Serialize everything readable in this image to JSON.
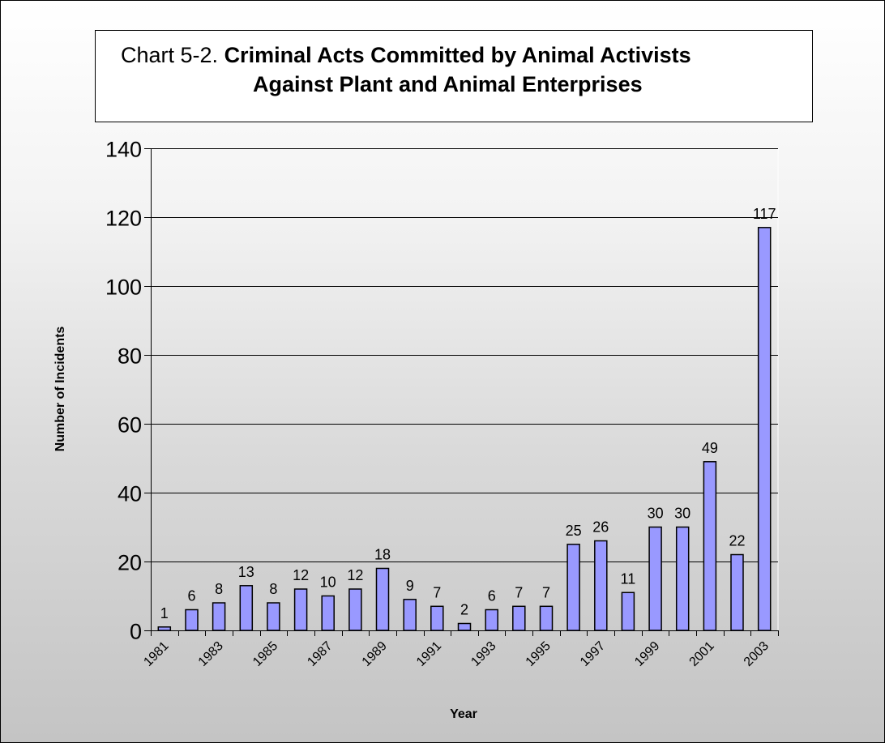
{
  "title": {
    "prefix": "Chart 5-2. ",
    "line1_bold": "Criminal Acts Committed by Animal Activists",
    "line2": "Against Plant and Animal Enterprises"
  },
  "chart_data": {
    "type": "bar",
    "title": "Chart 5-2. Criminal Acts Committed by Animal Activists Against Plant and Animal Enterprises",
    "xlabel": "Year",
    "ylabel": "Number of Incidents",
    "ylim": [
      0,
      140
    ],
    "yticks": [
      0,
      20,
      40,
      60,
      80,
      100,
      120,
      140
    ],
    "grid": true,
    "legend": "none",
    "bar_color": "#9999ff",
    "categories": [
      "1981",
      "1982",
      "1983",
      "1984",
      "1985",
      "1986",
      "1987",
      "1988",
      "1989",
      "1990",
      "1991",
      "1992",
      "1993",
      "1994",
      "1995",
      "1996",
      "1997",
      "1998",
      "1999",
      "2000",
      "2001",
      "2002",
      "2003"
    ],
    "x_tick_labels": [
      "1981",
      "1983",
      "1985",
      "1987",
      "1989",
      "1991",
      "1993",
      "1995",
      "1997",
      "1999",
      "2001",
      "2003"
    ],
    "values": [
      1,
      6,
      8,
      13,
      8,
      12,
      10,
      12,
      18,
      9,
      7,
      2,
      6,
      7,
      7,
      25,
      26,
      11,
      30,
      30,
      49,
      22,
      117
    ]
  }
}
